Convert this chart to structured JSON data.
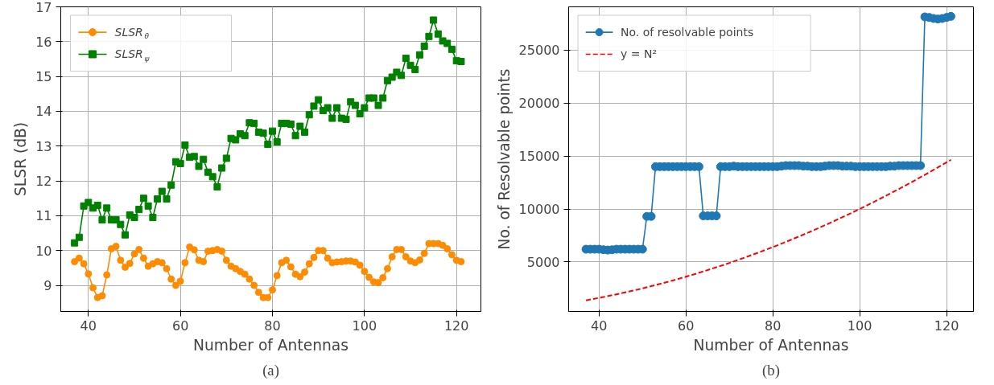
{
  "chart_data": [
    {
      "type": "line",
      "xlabel": "Number of Antennas",
      "ylabel": "SLSR (dB)",
      "annotations": [
        "(a)"
      ],
      "grid": true,
      "legend": "top left",
      "xlim": [
        34.0,
        125.3
      ],
      "xticks": [
        40,
        60,
        80,
        100,
        120
      ],
      "ylim": [
        8.25,
        17.0
      ],
      "yticks": [
        9,
        10,
        11,
        12,
        13,
        14,
        15,
        16,
        17
      ],
      "x": [
        37,
        38,
        39,
        40,
        41,
        42,
        43,
        44,
        45,
        46,
        47,
        48,
        49,
        50,
        51,
        52,
        53,
        54,
        55,
        56,
        57,
        58,
        59,
        60,
        61,
        62,
        63,
        64,
        65,
        66,
        67,
        68,
        69,
        70,
        71,
        72,
        73,
        74,
        75,
        76,
        77,
        78,
        79,
        80,
        81,
        82,
        83,
        84,
        85,
        86,
        87,
        88,
        89,
        90,
        91,
        92,
        93,
        94,
        95,
        96,
        97,
        98,
        99,
        100,
        101,
        102,
        103,
        104,
        105,
        106,
        107,
        108,
        109,
        110,
        111,
        112,
        113,
        114,
        115,
        116,
        117,
        118,
        119,
        120,
        121
      ],
      "series": [
        {
          "name": "SLSR$_{θ}$",
          "color": "#ff8c00",
          "marker": "circle",
          "line_style": "solid",
          "values": [
            9.68,
            9.78,
            9.62,
            9.33,
            8.93,
            8.65,
            8.7,
            9.3,
            10.05,
            10.12,
            9.72,
            9.52,
            9.63,
            9.9,
            10.03,
            9.78,
            9.55,
            9.62,
            9.68,
            9.65,
            9.48,
            9.18,
            9.0,
            9.12,
            9.65,
            10.1,
            10.02,
            9.72,
            9.68,
            9.98,
            10.0,
            10.03,
            9.98,
            9.72,
            9.55,
            9.48,
            9.4,
            9.32,
            9.18,
            9.0,
            8.8,
            8.65,
            8.65,
            8.87,
            9.28,
            9.65,
            9.72,
            9.53,
            9.32,
            9.25,
            9.38,
            9.62,
            9.8,
            10.0,
            10.0,
            9.78,
            9.65,
            9.67,
            9.68,
            9.7,
            9.7,
            9.67,
            9.58,
            9.4,
            9.23,
            9.1,
            9.08,
            9.22,
            9.48,
            9.82,
            10.03,
            10.03,
            9.82,
            9.7,
            9.65,
            9.73,
            9.92,
            10.2,
            10.2,
            10.2,
            10.15,
            10.05,
            9.88,
            9.72,
            9.68
          ]
        },
        {
          "name": "SLSR$_{ψ}$",
          "color": "#008000",
          "marker": "square",
          "line_style": "solid",
          "values": [
            10.22,
            10.38,
            11.28,
            11.38,
            11.22,
            11.3,
            10.88,
            11.22,
            10.88,
            10.88,
            10.75,
            10.45,
            11.02,
            10.95,
            11.18,
            11.5,
            11.28,
            10.95,
            11.48,
            11.7,
            11.48,
            11.88,
            12.55,
            12.5,
            13.03,
            12.68,
            12.7,
            12.42,
            12.62,
            12.25,
            12.12,
            11.83,
            12.37,
            12.65,
            13.22,
            13.18,
            13.35,
            13.3,
            13.67,
            13.65,
            13.4,
            13.37,
            13.05,
            13.43,
            13.12,
            13.65,
            13.65,
            13.63,
            13.3,
            13.57,
            13.4,
            13.9,
            14.15,
            14.33,
            14.02,
            14.1,
            13.8,
            14.1,
            13.8,
            13.77,
            14.27,
            14.17,
            13.93,
            14.1,
            14.38,
            14.38,
            14.17,
            14.38,
            14.88,
            14.98,
            15.12,
            15.03,
            15.52,
            15.32,
            15.2,
            15.62,
            15.87,
            16.15,
            16.62,
            16.22,
            16.02,
            15.95,
            15.78,
            15.45,
            15.43
          ]
        }
      ]
    },
    {
      "type": "line",
      "xlabel": "Number of Antennas",
      "ylabel": "No. of Resolvable points",
      "annotations": [
        "(b)"
      ],
      "grid": true,
      "legend": "top left",
      "xlim": [
        33.0,
        126.2
      ],
      "xticks": [
        40,
        60,
        80,
        100,
        120
      ],
      "ylim": [
        320,
        29100
      ],
      "yticks": [
        5000,
        10000,
        15000,
        20000,
        25000
      ],
      "series": [
        {
          "name": "No. of resolvable points",
          "color": "#1f77b4",
          "marker": "circle",
          "line_style": "solid",
          "x": [
            37,
            38,
            39,
            40,
            41,
            42,
            43,
            44,
            45,
            46,
            47,
            48,
            49,
            50,
            51,
            52,
            53,
            54,
            55,
            56,
            57,
            58,
            59,
            60,
            61,
            62,
            63,
            64,
            65,
            66,
            67,
            68,
            69,
            70,
            71,
            72,
            73,
            74,
            75,
            76,
            77,
            78,
            79,
            80,
            81,
            82,
            83,
            84,
            85,
            86,
            87,
            88,
            89,
            90,
            91,
            92,
            93,
            94,
            95,
            96,
            97,
            98,
            99,
            100,
            101,
            102,
            103,
            104,
            105,
            106,
            107,
            108,
            109,
            110,
            111,
            112,
            113,
            114,
            115,
            116,
            117,
            118,
            119,
            120,
            121
          ],
          "values": [
            6200,
            6200,
            6200,
            6200,
            6150,
            6120,
            6150,
            6200,
            6200,
            6200,
            6200,
            6200,
            6200,
            6200,
            9300,
            9300,
            14000,
            14000,
            14000,
            14000,
            14000,
            14000,
            14000,
            14000,
            14000,
            14000,
            14000,
            9350,
            9350,
            9350,
            9350,
            14000,
            14000,
            14000,
            14050,
            14000,
            14000,
            14000,
            14000,
            14000,
            14000,
            14000,
            14000,
            14000,
            14000,
            14050,
            14100,
            14100,
            14100,
            14100,
            14050,
            14050,
            14000,
            14000,
            14000,
            14050,
            14100,
            14100,
            14100,
            14050,
            14050,
            14050,
            14000,
            14000,
            14000,
            14000,
            14000,
            14000,
            14000,
            14000,
            14050,
            14050,
            14100,
            14100,
            14100,
            14100,
            14100,
            14100,
            28150,
            28100,
            28000,
            27950,
            28000,
            28100,
            28200
          ]
        },
        {
          "name": "y = N²",
          "color": "#ff0000",
          "marker": "none",
          "line_style": "dashed",
          "x": [
            37,
            41,
            45,
            49,
            53,
            57,
            61,
            65,
            69,
            73,
            77,
            81,
            85,
            89,
            93,
            97,
            101,
            105,
            109,
            113,
            117,
            121
          ],
          "values": [
            1370,
            1680,
            2030,
            2400,
            2810,
            3250,
            3720,
            4230,
            4760,
            5330,
            5930,
            6560,
            7230,
            7920,
            8650,
            9410,
            10200,
            11030,
            11880,
            12770,
            13690,
            14640
          ]
        }
      ]
    }
  ]
}
